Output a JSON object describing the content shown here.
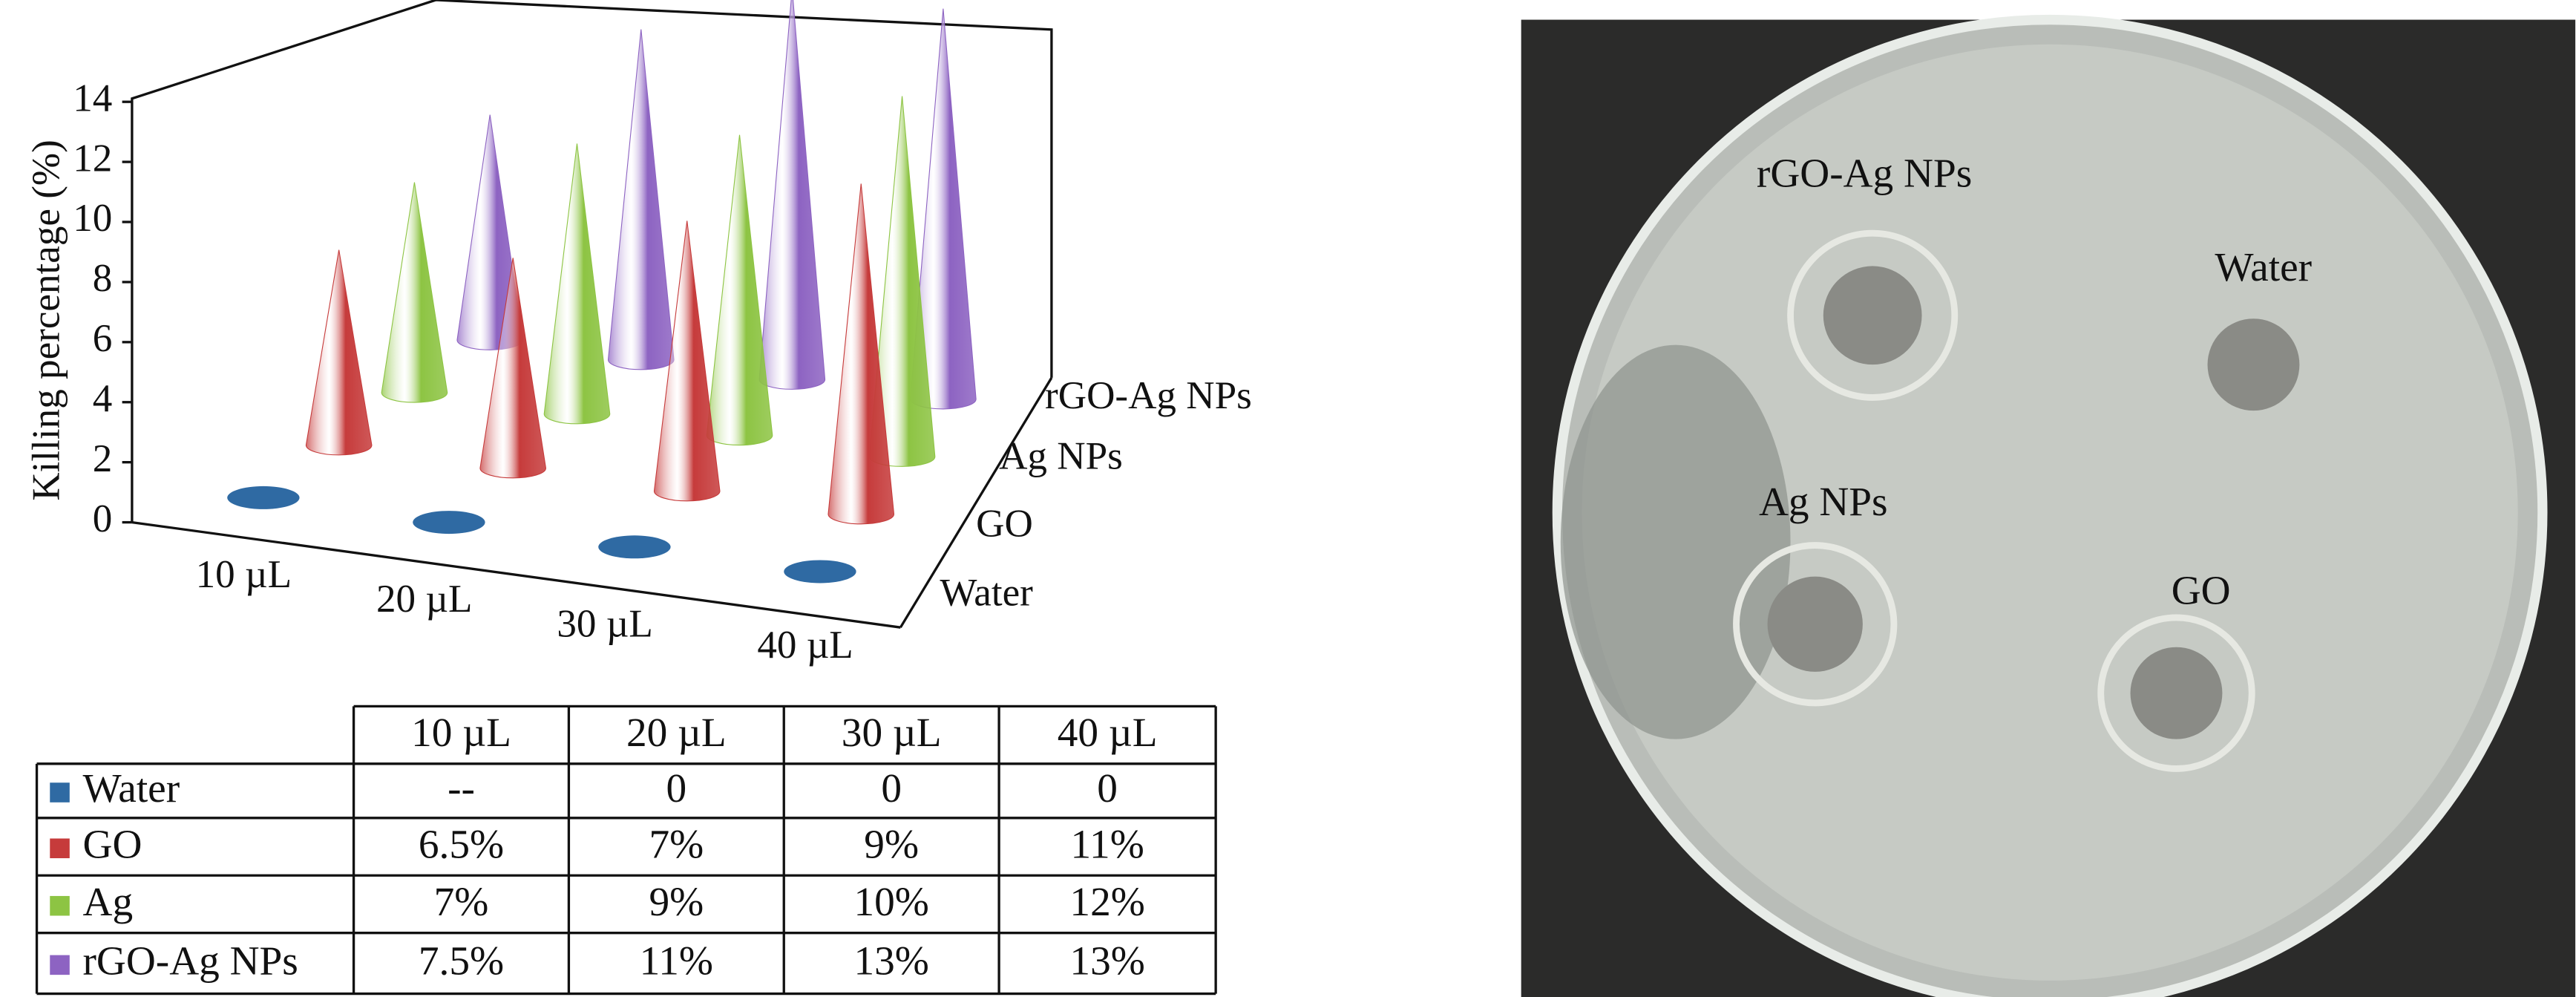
{
  "chart_data": {
    "type": "cone3d",
    "y_label": "Killing percentage (%)",
    "categories": [
      "10 µL",
      "20 µL",
      "30 µL",
      "40 µL"
    ],
    "depth_labels": [
      "Water",
      "GO",
      "Ag NPs",
      "rGO-Ag NPs"
    ],
    "series": [
      {
        "name": "Water",
        "color": "#2f6aa3",
        "values": [
          null,
          0,
          0,
          0
        ],
        "value_labels": [
          "--",
          "0",
          "0",
          "0"
        ]
      },
      {
        "name": "GO",
        "color": "#c63b3b",
        "values": [
          6.5,
          7,
          9,
          11
        ],
        "value_labels": [
          "6.5%",
          "7%",
          "9%",
          "11%"
        ]
      },
      {
        "name": "Ag",
        "color": "#8dc443",
        "values": [
          7,
          9,
          10,
          12
        ],
        "value_labels": [
          "7%",
          "9%",
          "10%",
          "12%"
        ]
      },
      {
        "name": "rGO-Ag NPs",
        "color": "#8d63c2",
        "values": [
          7.5,
          11,
          13,
          13
        ],
        "value_labels": [
          "7.5%",
          "11%",
          "13%",
          "13%"
        ]
      }
    ],
    "ylim": [
      0,
      14
    ],
    "yticks": [
      0,
      2,
      4,
      6,
      8,
      10,
      12,
      14
    ]
  },
  "photo": {
    "labels": [
      "rGO-Ag NPs",
      "Water",
      "Ag NPs",
      "GO"
    ]
  }
}
